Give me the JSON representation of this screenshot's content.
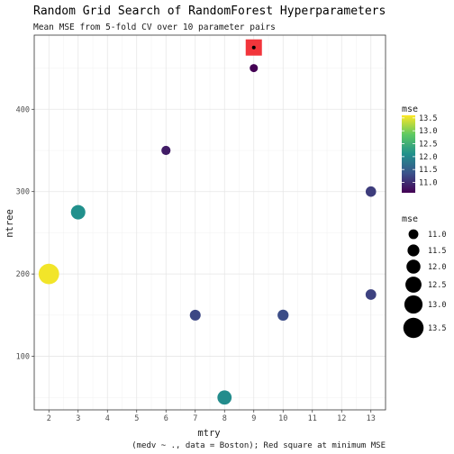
{
  "chart_data": {
    "type": "scatter",
    "title": "Random Grid Search of RandomForest Hyperparameters",
    "subtitle": "Mean MSE from 5-fold CV over 10 parameter pairs",
    "caption": "(medv ~ ., data = Boston); Red square at minimum MSE",
    "xlabel": "mtry",
    "ylabel": "ntree",
    "xlim": [
      1.5,
      13.5
    ],
    "ylim": [
      35,
      490
    ],
    "x_ticks": [
      2,
      3,
      4,
      5,
      6,
      7,
      8,
      9,
      10,
      11,
      12,
      13
    ],
    "y_ticks": [
      100,
      200,
      300,
      400
    ],
    "grid": true,
    "points": [
      {
        "x": 2,
        "y": 200,
        "mse": 13.55
      },
      {
        "x": 3,
        "y": 275,
        "mse": 12.1
      },
      {
        "x": 6,
        "y": 350,
        "mse": 10.85
      },
      {
        "x": 7,
        "y": 150,
        "mse": 11.25
      },
      {
        "x": 8,
        "y": 50,
        "mse": 12.05
      },
      {
        "x": 9,
        "y": 450,
        "mse": 10.6
      },
      {
        "x": 9,
        "y": 475,
        "mse": 10.6
      },
      {
        "x": 10,
        "y": 150,
        "mse": 11.3
      },
      {
        "x": 13,
        "y": 300,
        "mse": 11.15
      },
      {
        "x": 13,
        "y": 175,
        "mse": 11.2
      }
    ],
    "minimum_marker": {
      "x": 9,
      "y": 475,
      "color": "#f2353b"
    },
    "colorbar": {
      "title": "mse",
      "range": [
        10.6,
        13.6
      ],
      "ticks": [
        11.0,
        11.5,
        12.0,
        12.5,
        13.0,
        13.5
      ],
      "palette": [
        "#440154",
        "#3b528b",
        "#21908c",
        "#5dc963",
        "#fde725"
      ]
    },
    "size_legend": {
      "title": "mse",
      "values": [
        11.0,
        11.5,
        12.0,
        12.5,
        13.0,
        13.5
      ]
    }
  }
}
